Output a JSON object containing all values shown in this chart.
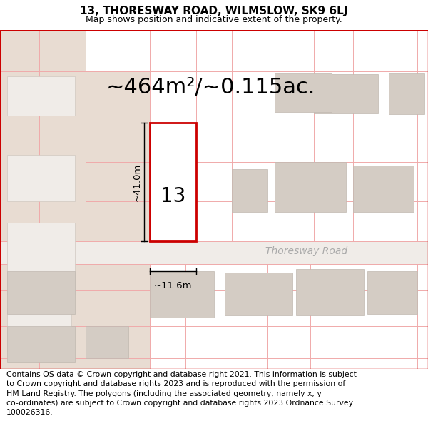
{
  "title_line1": "13, THORESWAY ROAD, WILMSLOW, SK9 6LJ",
  "title_line2": "Map shows position and indicative extent of the property.",
  "area_text": "~464m²/~0.115ac.",
  "dim_vertical": "~41.0m",
  "dim_horizontal": "~11.6m",
  "road_label": "Thoresway Road",
  "property_number": "13",
  "footer_text": "Contains OS data © Crown copyright and database right 2021. This information is subject to Crown copyright and database rights 2023 and is reproduced with the permission of HM Land Registry. The polygons (including the associated geometry, namely x, y co-ordinates) are subject to Crown copyright and database rights 2023 Ordnance Survey 100026316.",
  "bg_color": "#ffffff",
  "map_bg": "#ffffff",
  "beige_color": "#e8dcd2",
  "property_fill": "#ffffff",
  "property_edge": "#cc0000",
  "grid_line_color": "#f0aaaa",
  "building_fill": "#d4ccc4",
  "building_edge": "#c0b8b0",
  "road_fill": "#f0ece8",
  "footer_bg": "#ffffff",
  "title_fontsize": 11,
  "subtitle_fontsize": 9,
  "area_fontsize": 22,
  "dim_fontsize": 9.5,
  "road_label_fontsize": 10,
  "number_fontsize": 20
}
